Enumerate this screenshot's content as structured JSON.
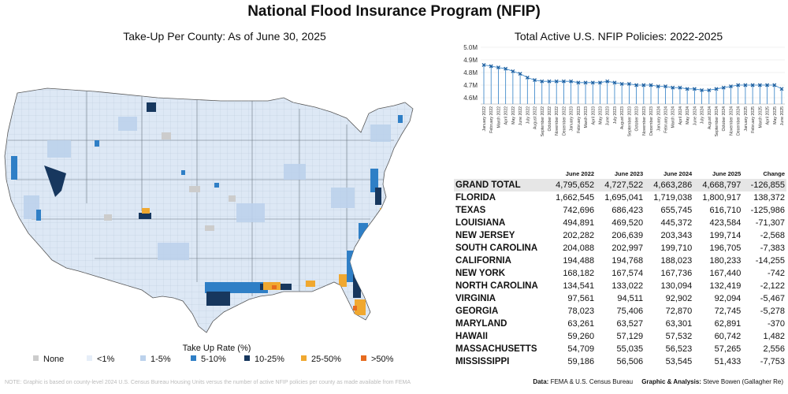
{
  "title": "National Flood Insurance Program (NFIP)",
  "map": {
    "subtitle": "Take-Up Per County: As of June 30, 2025",
    "legend_title": "Take Up Rate (%)",
    "legend": [
      {
        "label": "None",
        "color": "#cccccc"
      },
      {
        "label": "<1%",
        "color": "#e6eef8"
      },
      {
        "label": "1-5%",
        "color": "#bcd2ec"
      },
      {
        "label": "5-10%",
        "color": "#2f7fc6"
      },
      {
        "label": "10-25%",
        "color": "#17375e"
      },
      {
        "label": "25-50%",
        "color": "#f0a830"
      },
      {
        "label": ">50%",
        "color": "#e66b1f"
      }
    ]
  },
  "note": "NOTE: Graphic is based on county-level 2024 U.S. Census Bureau Housing Units versus the number of active NFIP policies per county as made available from FEMA",
  "chart_data": [
    {
      "type": "line",
      "title": "Total Active U.S. NFIP Policies: 2022-2025",
      "y_ticks": [
        "5.0M",
        "4.9M",
        "4.8M",
        "4.7M",
        "4.6M"
      ],
      "ylim": [
        4.55,
        5.0
      ],
      "series_color": "#2f7fc6",
      "x": [
        "January 2022",
        "February 2022",
        "March 2022",
        "April 2022",
        "May 2022",
        "June 2022",
        "July 2022",
        "August 2022",
        "September 2022",
        "October 2022",
        "November 2022",
        "December 2022",
        "January 2023",
        "February 2023",
        "March 2023",
        "April 2023",
        "May 2023",
        "June 2023",
        "July 2023",
        "August 2023",
        "September 2023",
        "October 2023",
        "November 2023",
        "December 2023",
        "January 2024",
        "February 2024",
        "March 2024",
        "April 2024",
        "May 2024",
        "June 2024",
        "July 2024",
        "August 2024",
        "September 2024",
        "October 2024",
        "November 2024",
        "December 2024",
        "January 2025",
        "February 2025",
        "March 2025",
        "April 2025",
        "May 2025",
        "June 2025"
      ],
      "values": [
        4.86,
        4.85,
        4.84,
        4.83,
        4.81,
        4.79,
        4.76,
        4.74,
        4.73,
        4.73,
        4.73,
        4.73,
        4.73,
        4.72,
        4.72,
        4.72,
        4.72,
        4.73,
        4.72,
        4.71,
        4.71,
        4.7,
        4.7,
        4.7,
        4.69,
        4.69,
        4.68,
        4.68,
        4.67,
        4.67,
        4.66,
        4.66,
        4.67,
        4.68,
        4.69,
        4.7,
        4.7,
        4.7,
        4.7,
        4.7,
        4.7,
        4.67
      ]
    },
    {
      "type": "table",
      "columns": [
        "",
        "June 2022",
        "June 2023",
        "June 2024",
        "June 2025",
        "Change"
      ],
      "rows": [
        [
          "GRAND TOTAL",
          "4,795,652",
          "4,727,522",
          "4,663,286",
          "4,668,797",
          "-126,855"
        ],
        [
          "FLORIDA",
          "1,662,545",
          "1,695,041",
          "1,719,038",
          "1,800,917",
          "138,372"
        ],
        [
          "TEXAS",
          "742,696",
          "686,423",
          "655,745",
          "616,710",
          "-125,986"
        ],
        [
          "LOUISIANA",
          "494,891",
          "469,520",
          "445,372",
          "423,584",
          "-71,307"
        ],
        [
          "NEW JERSEY",
          "202,282",
          "206,639",
          "203,343",
          "199,714",
          "-2,568"
        ],
        [
          "SOUTH CAROLINA",
          "204,088",
          "202,997",
          "199,710",
          "196,705",
          "-7,383"
        ],
        [
          "CALIFORNIA",
          "194,488",
          "194,768",
          "188,023",
          "180,233",
          "-14,255"
        ],
        [
          "NEW YORK",
          "168,182",
          "167,574",
          "167,736",
          "167,440",
          "-742"
        ],
        [
          "NORTH CAROLINA",
          "134,541",
          "133,022",
          "130,094",
          "132,419",
          "-2,122"
        ],
        [
          "VIRGINIA",
          "97,561",
          "94,511",
          "92,902",
          "92,094",
          "-5,467"
        ],
        [
          "GEORGIA",
          "78,023",
          "75,406",
          "72,870",
          "72,745",
          "-5,278"
        ],
        [
          "MARYLAND",
          "63,261",
          "63,527",
          "63,301",
          "62,891",
          "-370"
        ],
        [
          "HAWAII",
          "59,260",
          "57,129",
          "57,532",
          "60,742",
          "1,482"
        ],
        [
          "MASSACHUSETTS",
          "54,709",
          "55,035",
          "56,523",
          "57,265",
          "2,556"
        ],
        [
          "MISSISSIPPI",
          "59,186",
          "56,506",
          "53,545",
          "51,433",
          "-7,753"
        ]
      ]
    }
  ],
  "credit": {
    "data_label": "Data:",
    "data_value": "FEMA & U.S. Census Bureau",
    "graphic_label": "Graphic & Analysis:",
    "graphic_value": "Steve Bowen (Gallagher Re)"
  }
}
